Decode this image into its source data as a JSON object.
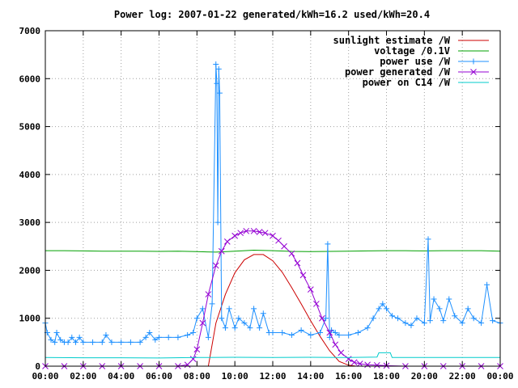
{
  "chart_data": {
    "type": "line",
    "title": "Power log: 2007-01-22 generated/kWh=16.2 used/kWh=20.4",
    "xlabel": "",
    "ylabel": "",
    "xlim": [
      0,
      24
    ],
    "ylim": [
      0,
      7000
    ],
    "x_ticks": [
      "00:00",
      "02:00",
      "04:00",
      "06:00",
      "08:00",
      "10:00",
      "12:00",
      "14:00",
      "16:00",
      "18:00",
      "20:00",
      "22:00",
      "00:00"
    ],
    "y_ticks": [
      "0",
      "1000",
      "2000",
      "3000",
      "4000",
      "5000",
      "6000",
      "7000"
    ],
    "grid": true,
    "legend_position": "top-right",
    "series": [
      {
        "name": "sunlight estimate /W",
        "color": "#cc0000",
        "marker": "none",
        "x": [
          8.6,
          9.0,
          9.5,
          10.0,
          10.5,
          11.0,
          11.5,
          12.0,
          12.5,
          13.0,
          13.5,
          14.0,
          14.5,
          15.0,
          15.5,
          16.0,
          16.4
        ],
        "y": [
          0,
          900,
          1500,
          1950,
          2220,
          2330,
          2330,
          2200,
          1960,
          1640,
          1300,
          950,
          620,
          320,
          100,
          20,
          0
        ]
      },
      {
        "name": "voltage /0.1V",
        "color": "#00a000",
        "marker": "none",
        "x": [
          0,
          1,
          2,
          3,
          4,
          5,
          6,
          7,
          8,
          9,
          10,
          11,
          12,
          13,
          14,
          15,
          16,
          17,
          18,
          19,
          20,
          21,
          22,
          23,
          24
        ],
        "y": [
          2410,
          2410,
          2405,
          2400,
          2400,
          2400,
          2395,
          2400,
          2390,
          2380,
          2400,
          2420,
          2410,
          2395,
          2390,
          2395,
          2400,
          2405,
          2410,
          2410,
          2405,
          2410,
          2410,
          2410,
          2400
        ]
      },
      {
        "name": "power use /W",
        "color": "#1e90ff",
        "marker": "plus",
        "x": [
          0.0,
          0.1,
          0.3,
          0.5,
          0.6,
          0.8,
          1.0,
          1.2,
          1.4,
          1.6,
          1.8,
          2.0,
          2.5,
          3.0,
          3.2,
          3.5,
          4.0,
          4.5,
          5.0,
          5.3,
          5.5,
          5.8,
          6.0,
          6.5,
          7.0,
          7.5,
          7.8,
          8.0,
          8.3,
          8.6,
          8.8,
          9.0,
          9.05,
          9.1,
          9.15,
          9.2,
          9.3,
          9.5,
          9.7,
          10.0,
          10.2,
          10.5,
          10.8,
          11.0,
          11.3,
          11.5,
          11.8,
          12.0,
          12.5,
          13.0,
          13.5,
          14.0,
          14.5,
          14.8,
          14.9,
          15.0,
          15.1,
          15.3,
          15.5,
          16.0,
          16.5,
          17.0,
          17.3,
          17.6,
          17.8,
          18.0,
          18.3,
          18.6,
          19.0,
          19.3,
          19.6,
          20.0,
          20.2,
          20.3,
          20.5,
          20.8,
          21.0,
          21.3,
          21.6,
          22.0,
          22.3,
          22.6,
          23.0,
          23.3,
          23.6,
          24.0
        ],
        "y": [
          900,
          700,
          550,
          500,
          700,
          550,
          500,
          500,
          600,
          500,
          600,
          500,
          500,
          500,
          650,
          500,
          500,
          500,
          500,
          600,
          700,
          550,
          600,
          600,
          600,
          650,
          700,
          1000,
          1200,
          600,
          1300,
          6300,
          5900,
          3000,
          6200,
          5700,
          1000,
          800,
          1200,
          800,
          1000,
          900,
          800,
          1200,
          800,
          1100,
          700,
          700,
          700,
          650,
          750,
          650,
          700,
          1000,
          2550,
          600,
          750,
          700,
          650,
          650,
          700,
          800,
          1000,
          1200,
          1300,
          1200,
          1050,
          1000,
          900,
          850,
          1000,
          900,
          2650,
          950,
          1400,
          1200,
          950,
          1400,
          1050,
          900,
          1200,
          1000,
          900,
          1700,
          950,
          900
        ]
      },
      {
        "name": "power generated /W",
        "color": "#9400d3",
        "marker": "cross",
        "x": [
          0,
          1,
          2,
          3,
          4,
          5,
          6,
          7,
          7.5,
          7.8,
          8.0,
          8.3,
          8.6,
          9.0,
          9.3,
          9.6,
          10.0,
          10.3,
          10.6,
          11.0,
          11.3,
          11.6,
          12.0,
          12.3,
          12.6,
          13.0,
          13.3,
          13.6,
          14.0,
          14.3,
          14.6,
          15.0,
          15.3,
          15.6,
          16.0,
          16.3,
          16.6,
          17.0,
          17.5,
          18.0,
          19.0,
          20.0,
          21.0,
          22.0,
          23.0,
          24.0
        ],
        "y": [
          0,
          0,
          0,
          0,
          0,
          0,
          0,
          0,
          30,
          150,
          350,
          900,
          1500,
          2100,
          2400,
          2600,
          2720,
          2780,
          2820,
          2820,
          2800,
          2780,
          2720,
          2620,
          2500,
          2350,
          2150,
          1900,
          1600,
          1300,
          1000,
          700,
          450,
          280,
          150,
          80,
          50,
          30,
          20,
          10,
          0,
          0,
          0,
          0,
          0,
          0
        ]
      },
      {
        "name": "power on C14 /W",
        "color": "#00cccc",
        "marker": "none",
        "x": [
          0,
          2,
          4,
          6,
          8,
          10,
          12,
          14,
          15.5,
          16,
          17.5,
          17.6,
          18.2,
          18.3,
          20,
          22,
          24
        ],
        "y": [
          180,
          175,
          175,
          170,
          180,
          185,
          180,
          185,
          180,
          180,
          190,
          280,
          280,
          180,
          180,
          180,
          180
        ]
      }
    ]
  }
}
